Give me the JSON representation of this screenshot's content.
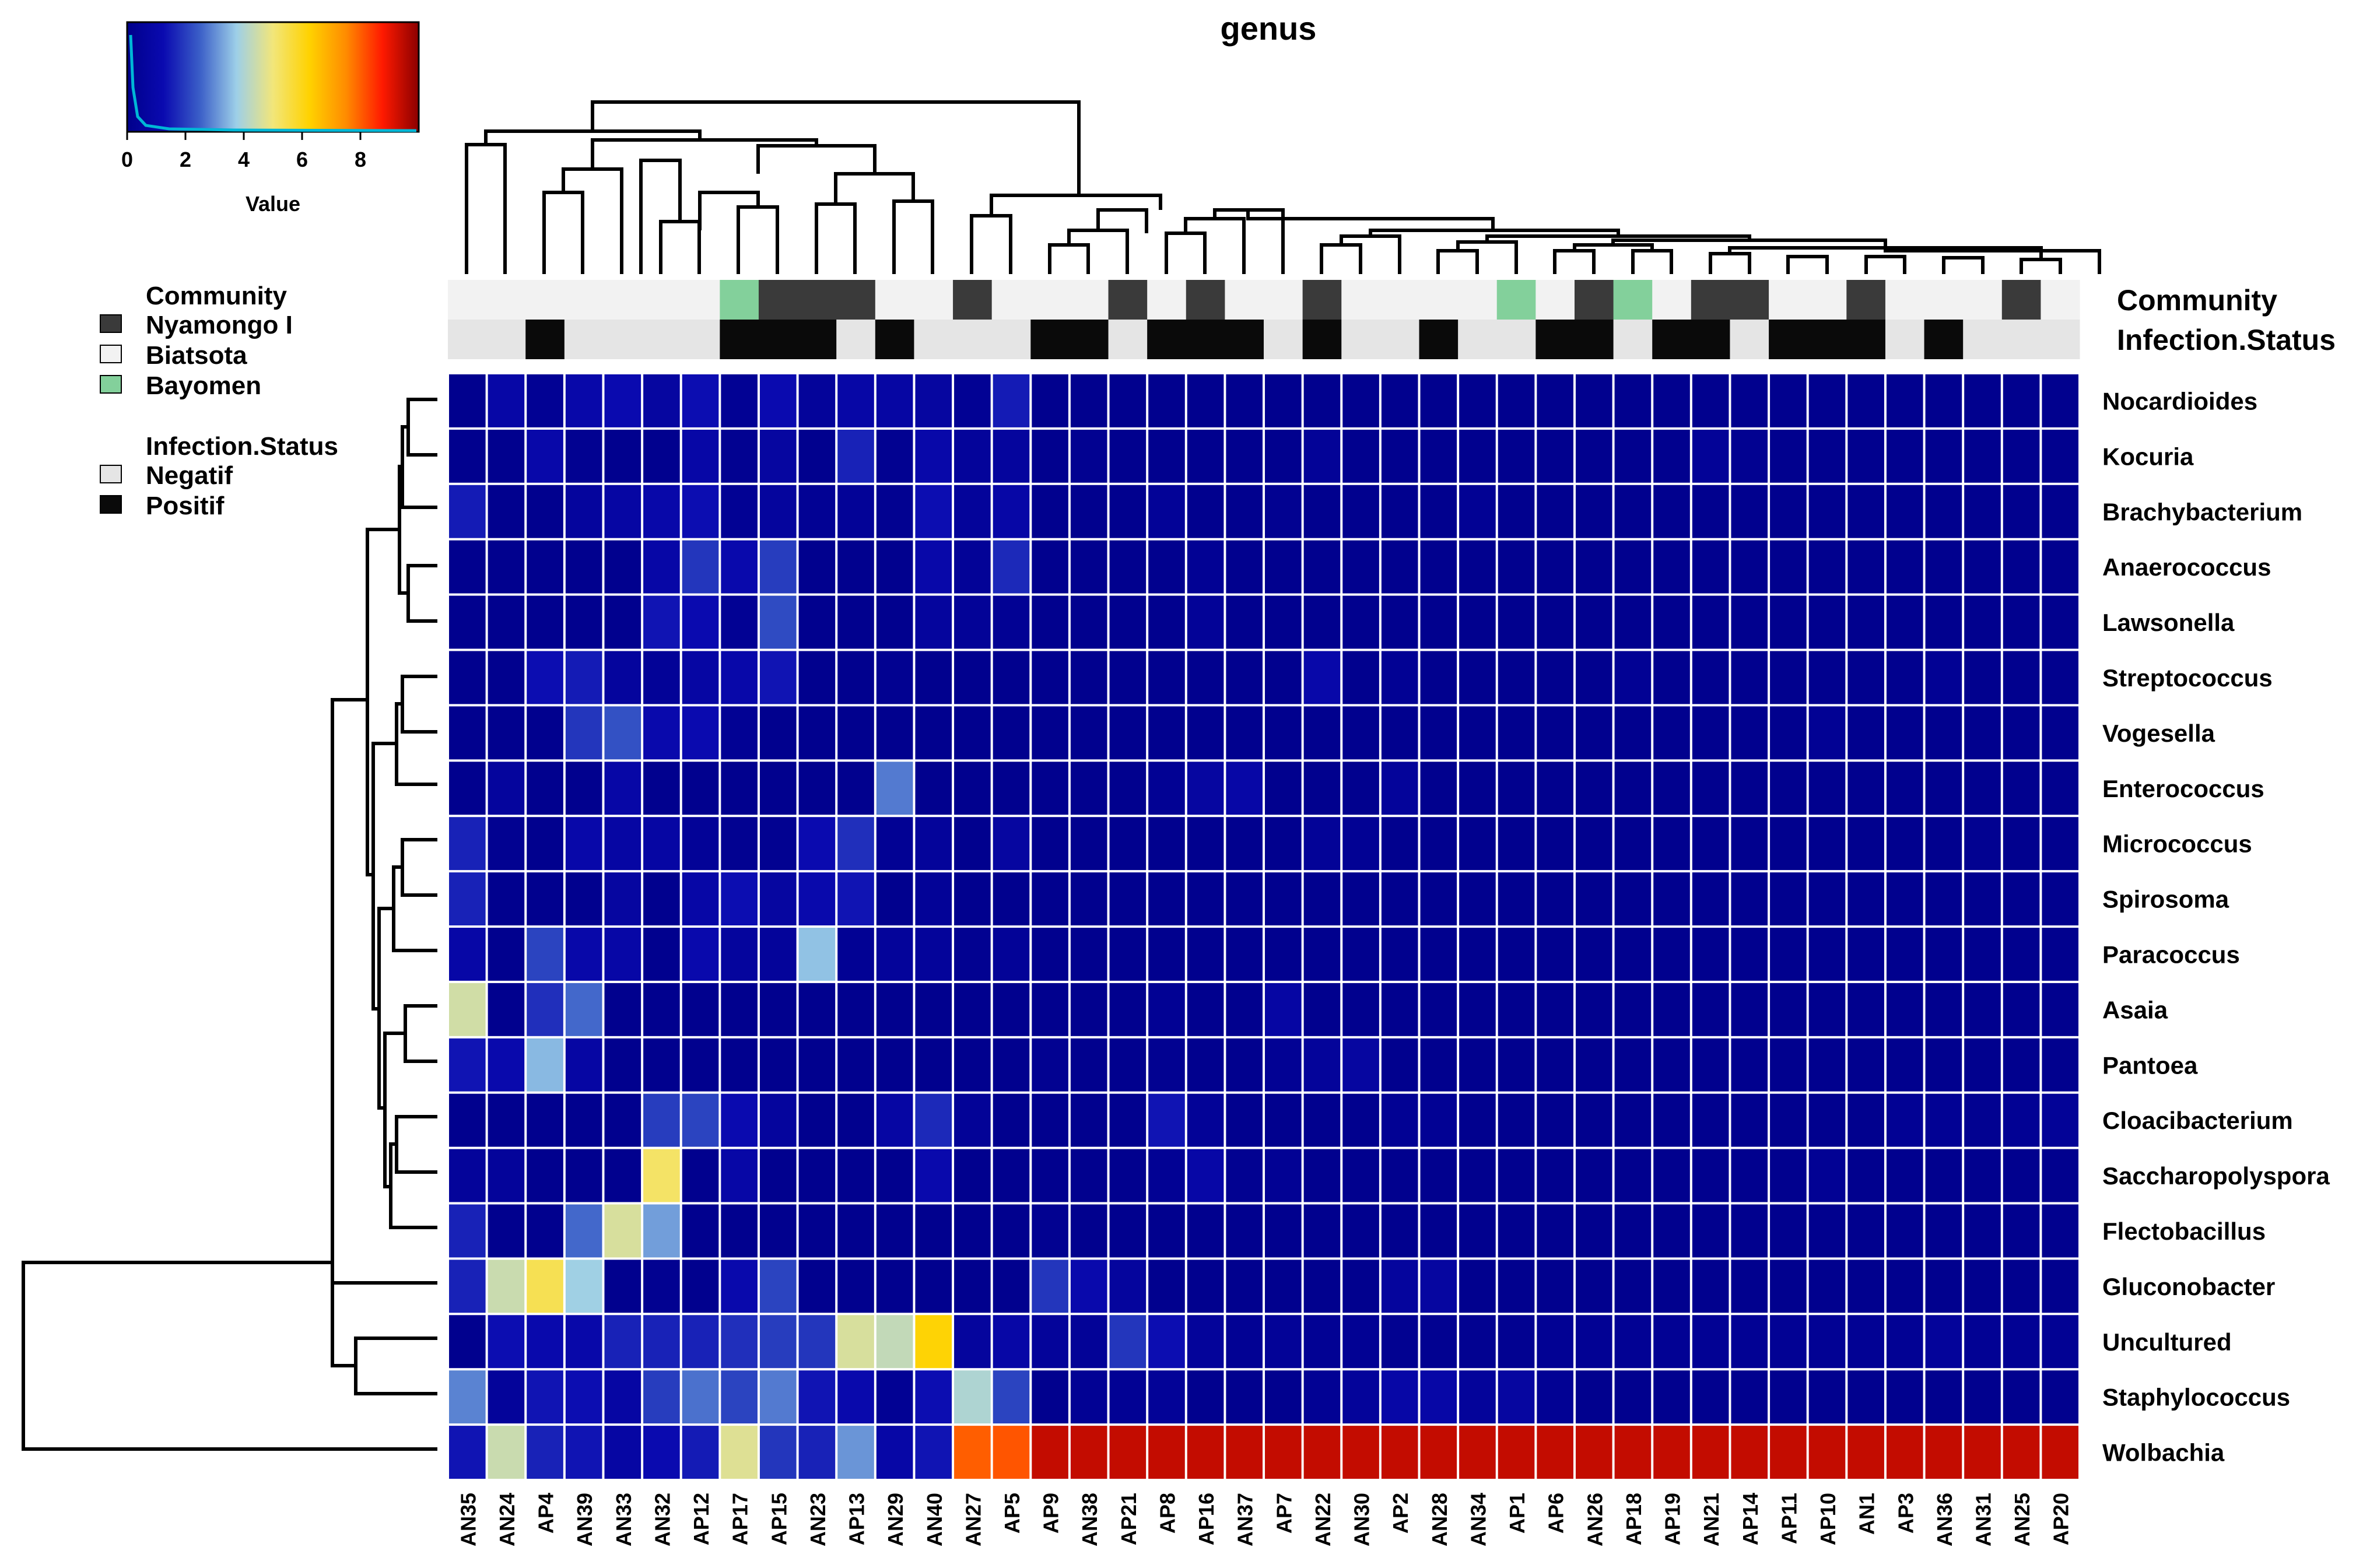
{
  "chart_data": {
    "type": "heatmap",
    "title": "genus",
    "columns": [
      "AN35",
      "AN24",
      "AP4",
      "AN39",
      "AN33",
      "AN32",
      "AP12",
      "AP17",
      "AP15",
      "AN23",
      "AP13",
      "AN29",
      "AN40",
      "AN27",
      "AP5",
      "AP9",
      "AN38",
      "AP21",
      "AP8",
      "AP16",
      "AN37",
      "AP7",
      "AN22",
      "AN30",
      "AP2",
      "AN28",
      "AN34",
      "AP1",
      "AP6",
      "AN26",
      "AP18",
      "AP19",
      "AN21",
      "AP14",
      "AP11",
      "AP10",
      "AN1",
      "AP3",
      "AN36",
      "AN31",
      "AN25",
      "AP20"
    ],
    "rows": [
      "Nocardioides",
      "Kocuria",
      "Brachybacterium",
      "Anaerococcus",
      "Lawsonella",
      "Streptococcus",
      "Vogesella",
      "Enterococcus",
      "Micrococcus",
      "Spirosoma",
      "Paracoccus",
      "Asaia",
      "Pantoea",
      "Cloacibacterium",
      "Saccharopolyspora",
      "Flectobacillus",
      "Gluconobacter",
      "Uncultured",
      "Staphylococcus",
      "Wolbachia"
    ],
    "values": [
      [
        0.1,
        0.9,
        0.3,
        1.0,
        1.2,
        0.7,
        1.3,
        0.3,
        1.2,
        0.5,
        0.9,
        0.8,
        0.7,
        0.3,
        1.5,
        0.1,
        0.1,
        0.1,
        0.1,
        0.1,
        0.1,
        0.1,
        0.1,
        0.1,
        0.1,
        0.1,
        0.1,
        0.1,
        0.1,
        0.1,
        0.1,
        0.1,
        0.1,
        0.1,
        0.1,
        0.1,
        0.1,
        0.1,
        0.1,
        0.1,
        0.1,
        0.1
      ],
      [
        0.1,
        0.1,
        1.0,
        0.2,
        0.1,
        0.1,
        0.9,
        0.2,
        0.7,
        0.1,
        1.6,
        0.2,
        1.0,
        0.5,
        0.6,
        0.1,
        0.2,
        0.1,
        0.1,
        0.1,
        0.1,
        0.1,
        0.4,
        0.1,
        0.1,
        0.1,
        0.1,
        0.1,
        0.1,
        0.1,
        0.1,
        0.1,
        0.4,
        0.2,
        0.1,
        0.1,
        0.1,
        0.1,
        0.1,
        0.1,
        0.1,
        0.1
      ],
      [
        1.5,
        0.1,
        0.1,
        0.6,
        0.8,
        1.0,
        1.3,
        0.3,
        0.6,
        0.3,
        0.4,
        0.2,
        1.3,
        0.5,
        0.9,
        0.1,
        0.1,
        0.1,
        0.4,
        0.1,
        0.1,
        0.2,
        0.1,
        0.1,
        0.1,
        0.1,
        0.3,
        0.1,
        0.1,
        0.1,
        0.1,
        0.1,
        0.1,
        0.1,
        0.1,
        0.1,
        0.1,
        0.1,
        0.1,
        0.1,
        0.1,
        0.1
      ],
      [
        0.1,
        0.1,
        0.1,
        0.1,
        0.1,
        0.9,
        1.9,
        1.1,
        2.0,
        0.1,
        0.1,
        0.1,
        1.0,
        0.4,
        1.7,
        0.1,
        0.1,
        0.1,
        0.1,
        0.3,
        0.1,
        0.1,
        0.1,
        0.1,
        0.1,
        0.1,
        0.1,
        0.1,
        0.1,
        0.1,
        0.1,
        0.1,
        0.1,
        0.1,
        0.1,
        0.1,
        0.1,
        0.1,
        0.1,
        0.1,
        0.1,
        0.1
      ],
      [
        0.1,
        0.1,
        0.1,
        0.1,
        0.1,
        1.4,
        1.2,
        0.3,
        2.2,
        0.1,
        0.1,
        0.1,
        0.6,
        0.4,
        0.3,
        0.1,
        0.1,
        0.1,
        0.1,
        0.4,
        0.1,
        0.1,
        0.1,
        0.1,
        0.1,
        0.1,
        0.1,
        0.1,
        0.1,
        0.1,
        0.1,
        0.1,
        0.1,
        0.1,
        0.1,
        0.1,
        0.1,
        0.1,
        0.1,
        0.1,
        0.1,
        0.1
      ],
      [
        0.1,
        0.1,
        1.3,
        1.5,
        0.6,
        0.4,
        0.8,
        1.0,
        1.4,
        0.1,
        0.1,
        0.2,
        0.1,
        0.1,
        0.1,
        0.1,
        0.1,
        0.1,
        0.1,
        0.1,
        0.1,
        0.1,
        1.0,
        0.1,
        0.3,
        0.1,
        0.1,
        0.1,
        0.1,
        0.1,
        0.3,
        0.1,
        0.1,
        0.1,
        0.1,
        0.1,
        0.1,
        0.1,
        0.3,
        0.1,
        0.1,
        0.1
      ],
      [
        0.1,
        0.1,
        0.1,
        1.9,
        2.3,
        1.1,
        1.2,
        0.3,
        0.1,
        0.1,
        0.1,
        0.1,
        0.1,
        0.1,
        0.1,
        0.1,
        0.1,
        0.1,
        0.1,
        0.1,
        0.1,
        0.1,
        0.1,
        0.1,
        0.1,
        0.1,
        0.1,
        0.1,
        0.1,
        0.1,
        0.1,
        0.1,
        0.1,
        0.1,
        0.1,
        0.3,
        0.1,
        0.1,
        0.1,
        0.1,
        0.1,
        0.1
      ],
      [
        0.1,
        0.6,
        0.1,
        0.1,
        0.9,
        0.1,
        0.1,
        0.1,
        0.1,
        0.1,
        0.1,
        2.8,
        0.1,
        0.1,
        0.1,
        0.1,
        0.1,
        0.1,
        0.3,
        0.7,
        0.9,
        0.1,
        0.1,
        0.1,
        0.5,
        0.1,
        0.1,
        0.1,
        0.1,
        0.1,
        0.1,
        0.1,
        0.1,
        0.1,
        0.1,
        0.1,
        0.1,
        0.1,
        0.1,
        0.1,
        0.1,
        0.1
      ],
      [
        1.6,
        0.2,
        0.1,
        1.0,
        0.8,
        0.8,
        0.4,
        0.2,
        0.2,
        1.2,
        1.8,
        0.3,
        0.5,
        0.1,
        0.7,
        0.1,
        0.1,
        0.1,
        0.1,
        0.1,
        0.1,
        0.1,
        0.4,
        0.3,
        0.1,
        0.1,
        0.1,
        0.1,
        0.1,
        0.1,
        0.1,
        0.1,
        0.1,
        0.1,
        0.1,
        0.1,
        0.1,
        0.1,
        0.1,
        0.2,
        0.1,
        0.1
      ],
      [
        1.6,
        0.1,
        0.1,
        0.1,
        0.7,
        0.1,
        0.9,
        1.3,
        0.7,
        1.1,
        1.4,
        0.1,
        0.4,
        0.1,
        0.1,
        0.1,
        0.1,
        0.1,
        0.1,
        0.1,
        0.1,
        0.1,
        0.1,
        0.1,
        0.1,
        0.1,
        0.1,
        0.1,
        0.1,
        0.1,
        0.1,
        0.1,
        0.1,
        0.1,
        0.1,
        0.1,
        0.1,
        0.1,
        0.1,
        0.1,
        0.1,
        0.1
      ],
      [
        0.9,
        0.1,
        2.1,
        1.0,
        0.9,
        0.1,
        1.1,
        0.6,
        0.5,
        3.6,
        0.3,
        0.5,
        0.5,
        0.2,
        0.4,
        0.1,
        0.1,
        0.1,
        0.1,
        0.1,
        0.1,
        0.1,
        0.1,
        0.1,
        0.1,
        0.1,
        0.1,
        0.1,
        0.1,
        0.1,
        0.1,
        0.1,
        0.1,
        0.1,
        0.1,
        0.1,
        0.1,
        0.1,
        0.1,
        0.1,
        0.1,
        0.1
      ],
      [
        4.5,
        0.1,
        1.8,
        2.6,
        0.1,
        0.1,
        0.1,
        0.1,
        0.1,
        0.1,
        0.1,
        0.1,
        0.1,
        0.1,
        0.1,
        0.1,
        0.1,
        0.1,
        0.3,
        0.1,
        0.1,
        0.8,
        0.1,
        0.1,
        0.1,
        0.1,
        0.1,
        0.1,
        0.1,
        0.1,
        0.1,
        0.1,
        0.1,
        0.1,
        0.1,
        0.1,
        0.1,
        0.1,
        0.1,
        0.1,
        0.1,
        0.1
      ],
      [
        1.4,
        1.1,
        3.5,
        0.8,
        0.1,
        0.1,
        0.1,
        0.1,
        0.1,
        0.1,
        0.1,
        0.1,
        0.1,
        0.1,
        0.1,
        0.2,
        0.1,
        0.1,
        0.2,
        0.1,
        0.1,
        0.3,
        0.5,
        0.7,
        0.1,
        0.1,
        0.1,
        0.1,
        0.1,
        0.1,
        0.1,
        0.1,
        0.1,
        0.1,
        0.1,
        0.1,
        0.1,
        0.1,
        0.1,
        0.1,
        0.1,
        0.1
      ],
      [
        0.1,
        0.1,
        0.1,
        0.1,
        0.1,
        2.0,
        2.1,
        1.2,
        0.6,
        0.1,
        0.1,
        0.8,
        1.7,
        0.4,
        0.1,
        0.1,
        0.1,
        0.1,
        1.4,
        0.4,
        0.1,
        0.1,
        0.1,
        0.1,
        0.3,
        0.3,
        0.1,
        0.1,
        0.1,
        0.1,
        0.1,
        0.1,
        0.1,
        0.1,
        0.1,
        0.1,
        0.1,
        0.3,
        0.3,
        0.2,
        0.3,
        0.4
      ],
      [
        0.5,
        0.5,
        0.1,
        0.1,
        0.1,
        5.2,
        0.1,
        0.9,
        0.1,
        0.1,
        0.1,
        0.1,
        1.1,
        0.1,
        0.1,
        0.1,
        0.1,
        0.1,
        0.3,
        0.9,
        0.2,
        0.3,
        0.1,
        0.1,
        0.1,
        0.1,
        0.1,
        0.1,
        0.1,
        0.1,
        0.1,
        0.1,
        0.1,
        0.1,
        0.1,
        0.3,
        0.1,
        0.1,
        0.1,
        0.1,
        0.1,
        0.1
      ],
      [
        1.6,
        0.1,
        0.1,
        2.6,
        4.6,
        3.2,
        0.1,
        0.1,
        0.1,
        0.1,
        0.1,
        0.1,
        0.1,
        0.1,
        0.1,
        0.2,
        0.1,
        0.1,
        0.1,
        0.1,
        0.1,
        0.1,
        0.1,
        0.1,
        0.1,
        0.1,
        0.1,
        0.1,
        0.1,
        0.1,
        0.1,
        0.1,
        0.1,
        0.1,
        0.1,
        0.1,
        0.1,
        0.1,
        0.1,
        0.1,
        0.1,
        0.1
      ],
      [
        1.6,
        4.4,
        5.4,
        3.8,
        0.1,
        0.2,
        0.1,
        1.1,
        2.1,
        0.1,
        0.1,
        0.1,
        0.1,
        0.1,
        0.1,
        1.9,
        1.1,
        0.6,
        0.1,
        0.1,
        0.1,
        0.1,
        0.1,
        0.1,
        0.6,
        0.7,
        0.1,
        0.1,
        0.1,
        0.1,
        0.1,
        0.1,
        0.1,
        0.1,
        0.1,
        0.1,
        0.1,
        0.1,
        0.1,
        0.1,
        0.1,
        0.1
      ],
      [
        0.1,
        1.3,
        1.1,
        1.0,
        1.6,
        1.6,
        1.6,
        1.8,
        2.0,
        1.9,
        4.6,
        4.3,
        6.2,
        0.6,
        0.9,
        0.5,
        0.4,
        1.9,
        1.3,
        0.5,
        0.3,
        0.4,
        0.3,
        0.3,
        0.2,
        0.2,
        0.2,
        0.2,
        0.3,
        0.3,
        0.3,
        0.3,
        0.3,
        0.3,
        0.3,
        0.3,
        0.3,
        0.3,
        0.5,
        0.3,
        0.3,
        0.3
      ],
      [
        2.9,
        0.5,
        1.4,
        1.3,
        0.8,
        2.0,
        2.7,
        2.1,
        2.8,
        1.4,
        1.1,
        0.3,
        1.3,
        4.0,
        2.1,
        0.1,
        0.3,
        0.3,
        0.4,
        0.1,
        0.1,
        0.1,
        0.3,
        0.5,
        0.9,
        0.9,
        0.5,
        0.7,
        0.3,
        0.1,
        0.1,
        0.1,
        0.1,
        0.1,
        0.1,
        0.1,
        0.1,
        0.1,
        0.1,
        0.1,
        0.1,
        0.1
      ],
      [
        1.4,
        4.4,
        1.6,
        1.4,
        0.8,
        1.2,
        1.5,
        4.7,
        1.9,
        1.6,
        3.1,
        0.9,
        1.4,
        8.0,
        8.1,
        9.4,
        9.4,
        9.4,
        9.4,
        9.4,
        9.4,
        9.4,
        9.4,
        9.4,
        9.4,
        9.4,
        9.4,
        9.4,
        9.4,
        9.4,
        9.4,
        9.4,
        9.4,
        9.4,
        9.4,
        9.4,
        9.4,
        9.4,
        9.4,
        9.4,
        9.4,
        9.4
      ]
    ],
    "community": [
      "Biatsota",
      "Biatsota",
      "Biatsota",
      "Biatsota",
      "Biatsota",
      "Biatsota",
      "Biatsota",
      "Bayomen",
      "Nyamongo I",
      "Nyamongo I",
      "Nyamongo I",
      "Biatsota",
      "Biatsota",
      "Nyamongo I",
      "Biatsota",
      "Biatsota",
      "Biatsota",
      "Nyamongo I",
      "Biatsota",
      "Nyamongo I",
      "Biatsota",
      "Biatsota",
      "Nyamongo I",
      "Biatsota",
      "Biatsota",
      "Biatsota",
      "Biatsota",
      "Bayomen",
      "Biatsota",
      "Nyamongo I",
      "Bayomen",
      "Biatsota",
      "Nyamongo I",
      "Nyamongo I",
      "Biatsota",
      "Biatsota",
      "Nyamongo I",
      "Biatsota",
      "Biatsota",
      "Biatsota",
      "Nyamongo I",
      "Biatsota"
    ],
    "infection_status": [
      "Negatif",
      "Negatif",
      "Positif",
      "Negatif",
      "Negatif",
      "Negatif",
      "Negatif",
      "Positif",
      "Positif",
      "Positif",
      "Negatif",
      "Positif",
      "Negatif",
      "Negatif",
      "Negatif",
      "Positif",
      "Positif",
      "Negatif",
      "Positif",
      "Positif",
      "Positif",
      "Negatif",
      "Positif",
      "Negatif",
      "Negatif",
      "Positif",
      "Negatif",
      "Negatif",
      "Positif",
      "Positif",
      "Negatif",
      "Positif",
      "Positif",
      "Negatif",
      "Positif",
      "Positif",
      "Positif",
      "Negatif",
      "Positif",
      "Negatif",
      "Negatif",
      "Negatif"
    ],
    "color_key": {
      "label": "Value",
      "ticks": [
        0,
        2,
        4,
        6,
        8
      ],
      "range": [
        0,
        10
      ]
    },
    "track_labels": {
      "community": "Community",
      "infection": "Infection.Status"
    },
    "legend": {
      "community_title": "Community",
      "community_items": [
        "Nyamongo I",
        "Biatsota",
        "Bayomen"
      ],
      "infection_title": "Infection.Status",
      "infection_items": [
        "Negatif",
        "Positif"
      ]
    }
  },
  "colors": {
    "Nyamongo I": "#3a3a3a",
    "Biatsota": "#f2f2f2",
    "Bayomen": "#83d09b",
    "Negatif": "#e5e5e5",
    "Positif": "#0a0a0a",
    "scale": [
      "#00008b",
      "#0a0ab0",
      "#3b5fc8",
      "#9dcfe8",
      "#f2e67a",
      "#ffd200",
      "#ff8c00",
      "#ff1a00",
      "#8b0000"
    ]
  }
}
